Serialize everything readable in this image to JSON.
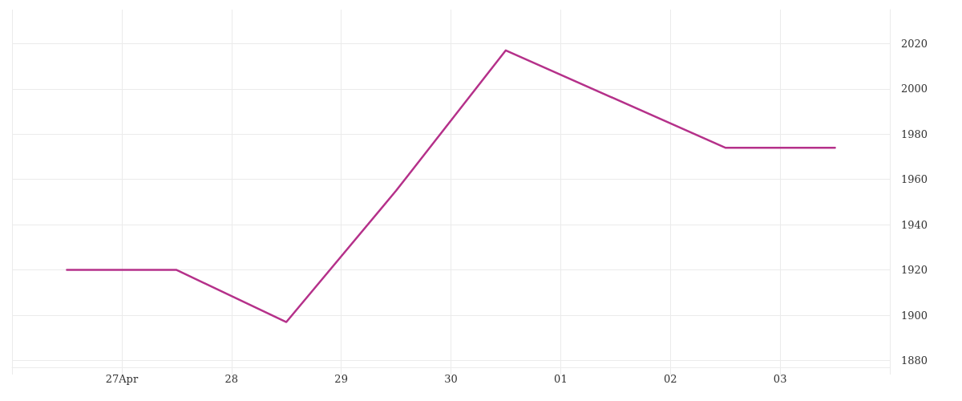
{
  "chart_data": {
    "type": "line",
    "x": [
      "--04-26T12:00",
      "--04-27T12:00",
      "--04-28T12:00",
      "--04-29T12:00",
      "--04-30T12:00",
      "--05-02T12:00",
      "--05-03T12:00"
    ],
    "series": [
      {
        "color": "#b5318a",
        "values": [
          1920,
          1920,
          1897,
          1955,
          2017,
          1974,
          1974
        ]
      }
    ],
    "xlim": [
      "--04-26",
      "--05-04"
    ],
    "xticks": [
      {
        "value": "--04-26",
        "label": null
      },
      {
        "value": "--04-27",
        "label": "27Apr"
      },
      {
        "value": "--04-28",
        "label": "28"
      },
      {
        "value": "--04-29",
        "label": "29"
      },
      {
        "value": "--04-30",
        "label": "30"
      },
      {
        "value": "--05-01",
        "label": "01"
      },
      {
        "value": "--05-02",
        "label": "02"
      },
      {
        "value": "--05-03",
        "label": "03"
      },
      {
        "value": "--05-04",
        "label": null
      }
    ],
    "ylim": [
      1877,
      2035
    ],
    "yticks": [
      1880,
      1900,
      1920,
      1940,
      1960,
      1980,
      2000,
      2020
    ],
    "grid": true,
    "marker": "none",
    "line_style": "solid"
  }
}
